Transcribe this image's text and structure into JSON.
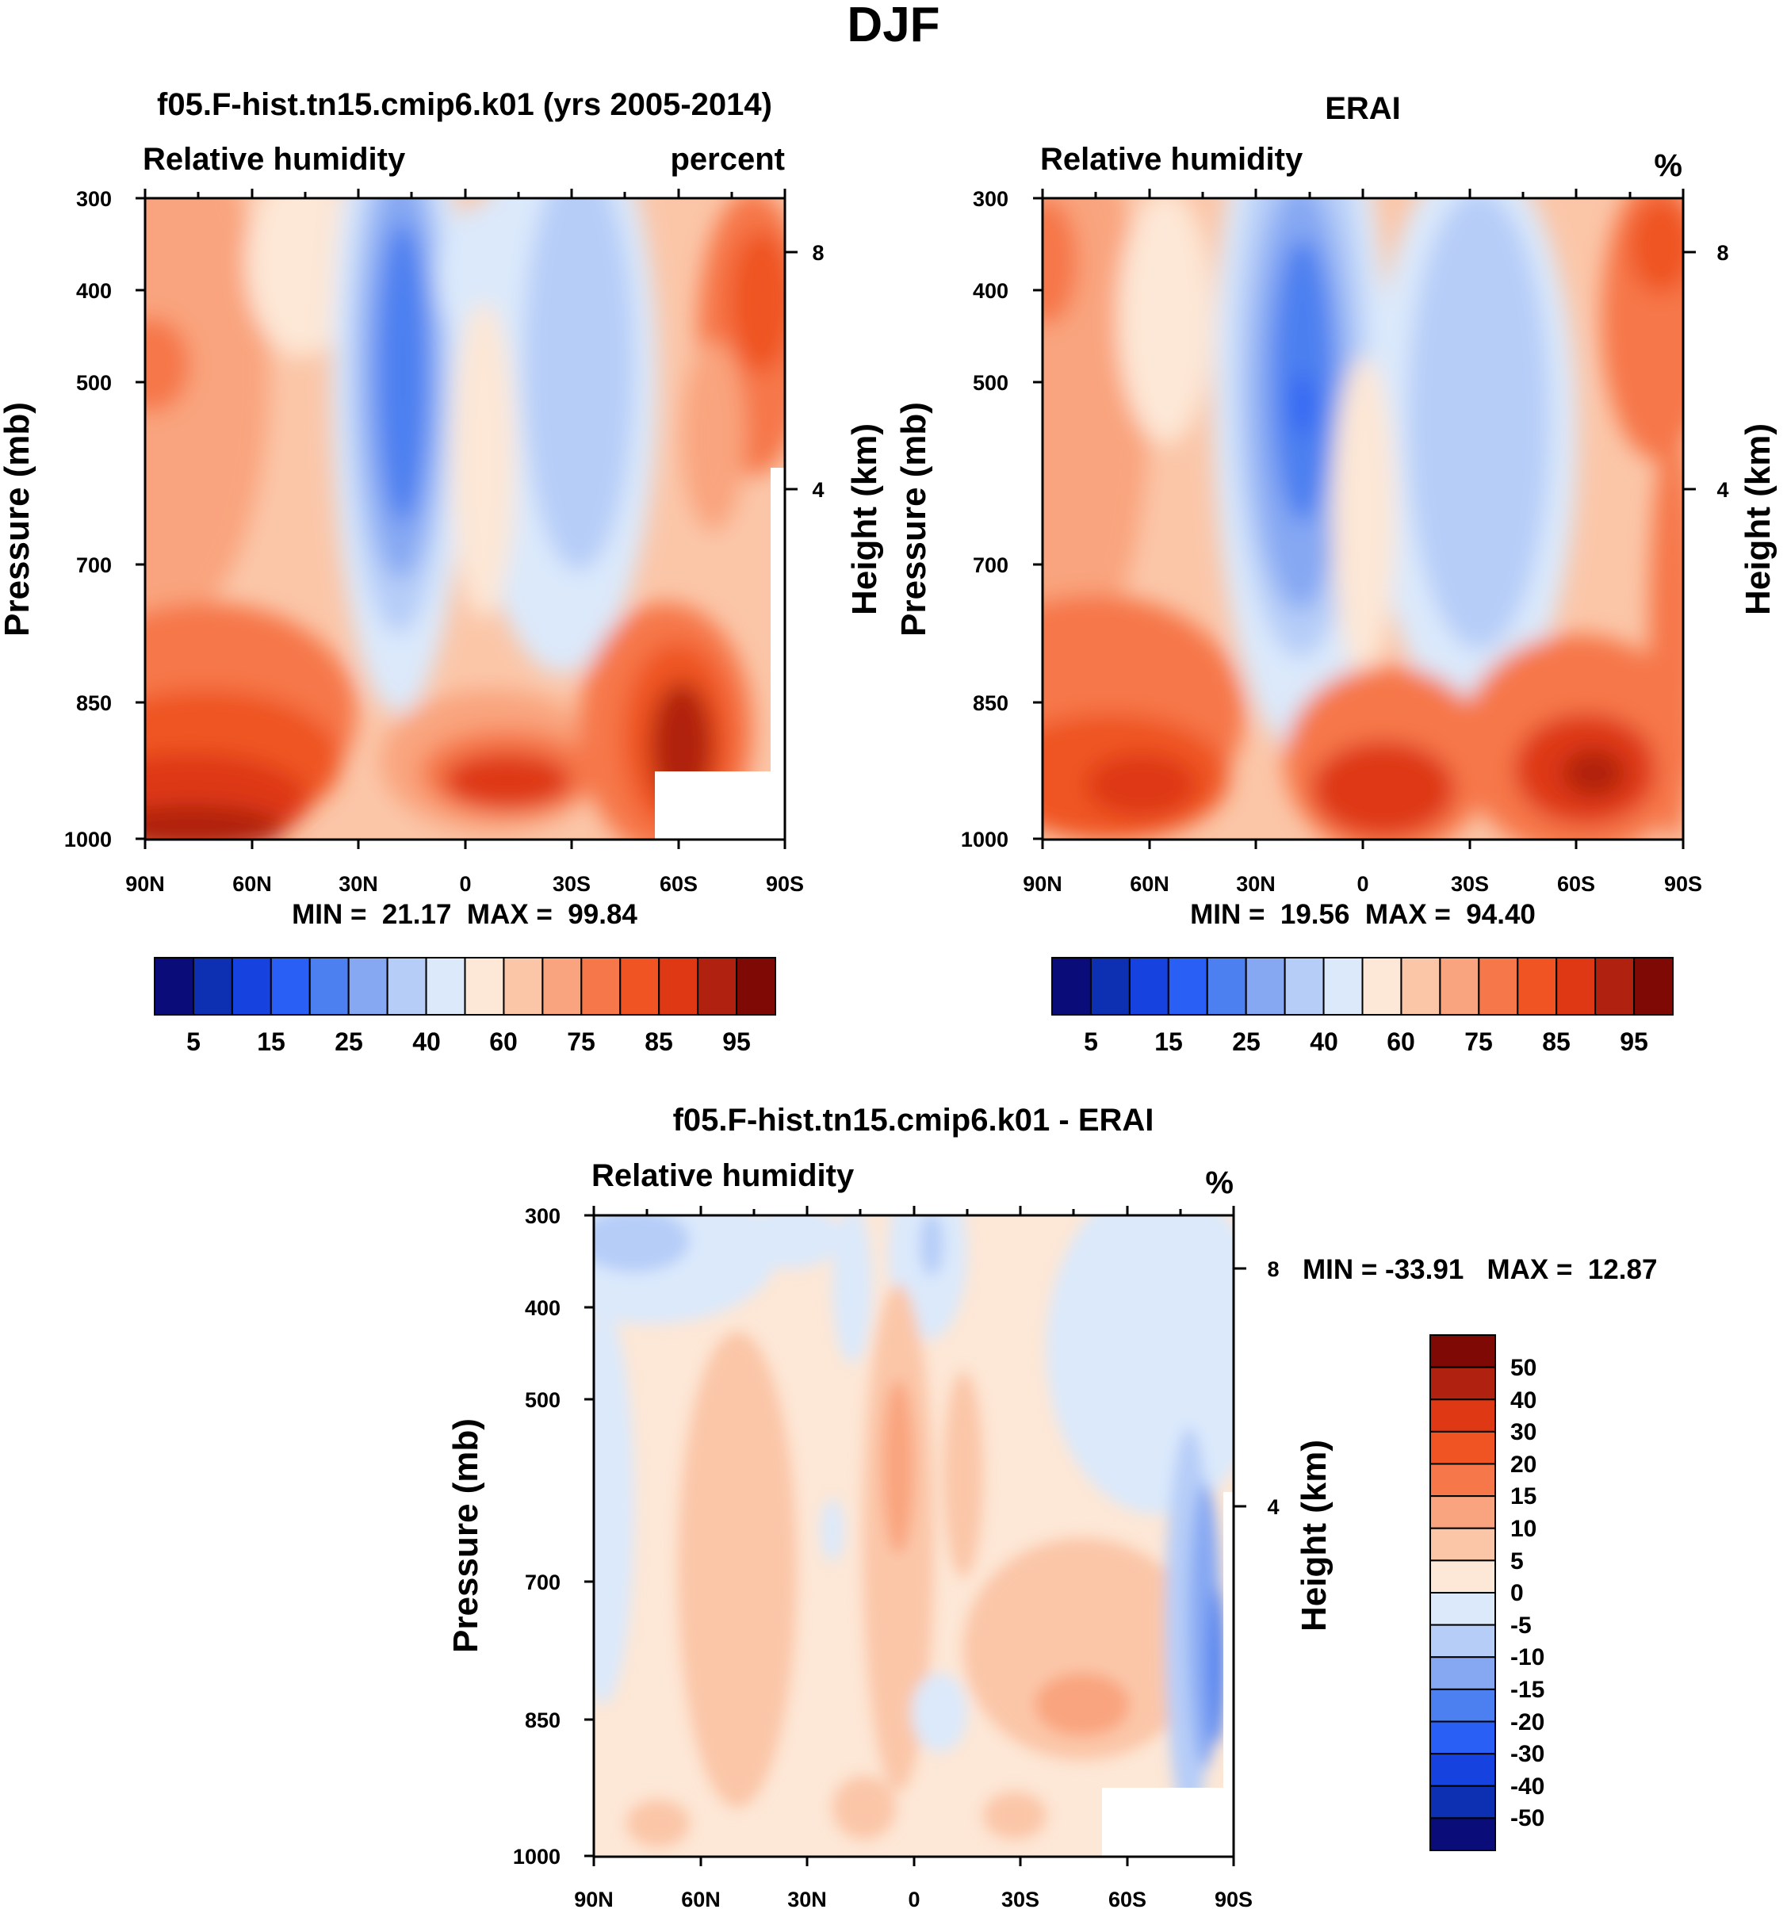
{
  "figure": {
    "title": "DJF"
  },
  "chart_data": [
    {
      "type": "heatmap",
      "title": "f05.F-hist.tn15.cmip6.k01 (yrs 2005-2014)",
      "left_label": "Relative humidity",
      "right_label": "percent",
      "ylabel": "Pressure (mb)",
      "ylabel_right": "Height (km)",
      "x_ticks": [
        "90N",
        "60N",
        "30N",
        "0",
        "30S",
        "60S",
        "90S"
      ],
      "y_ticks": [
        "300",
        "400",
        "500",
        "700",
        "850",
        "1000"
      ],
      "y_ticks_right": [
        "8",
        "4"
      ],
      "stats": "MIN =  21.17  MAX =  99.84",
      "colorbar_labels": [
        "5",
        "15",
        "25",
        "40",
        "60",
        "75",
        "85",
        "95"
      ],
      "value_range": [
        21.17,
        99.84
      ],
      "y_scale": "log",
      "ylim": [
        1000,
        300
      ],
      "xlim": [
        "90N",
        "90S"
      ]
    },
    {
      "type": "heatmap",
      "title": "ERAI",
      "left_label": "Relative humidity",
      "right_label": "%",
      "ylabel": "Pressure (mb)",
      "ylabel_right": "Height (km)",
      "x_ticks": [
        "90N",
        "60N",
        "30N",
        "0",
        "30S",
        "60S",
        "90S"
      ],
      "y_ticks": [
        "300",
        "400",
        "500",
        "700",
        "850",
        "1000"
      ],
      "y_ticks_right": [
        "8",
        "4"
      ],
      "stats": "MIN =  19.56  MAX =  94.40",
      "colorbar_labels": [
        "5",
        "15",
        "25",
        "40",
        "60",
        "75",
        "85",
        "95"
      ],
      "value_range": [
        19.56,
        94.4
      ],
      "y_scale": "log",
      "ylim": [
        1000,
        300
      ],
      "xlim": [
        "90N",
        "90S"
      ]
    },
    {
      "type": "heatmap",
      "title": "f05.F-hist.tn15.cmip6.k01 - ERAI",
      "left_label": "Relative humidity",
      "right_label": "%",
      "ylabel": "Pressure (mb)",
      "ylabel_right": "Height (km)",
      "x_ticks": [
        "90N",
        "60N",
        "30N",
        "0",
        "30S",
        "60S",
        "90S"
      ],
      "y_ticks": [
        "300",
        "400",
        "500",
        "700",
        "850",
        "1000"
      ],
      "y_ticks_right": [
        "8",
        "4"
      ],
      "stats": "MIN = -33.91   MAX =  12.87",
      "colorbar_labels": [
        "50",
        "40",
        "30",
        "20",
        "15",
        "10",
        "5",
        "0",
        "-5",
        "-10",
        "-15",
        "-20",
        "-30",
        "-40",
        "-50"
      ],
      "value_range": [
        -33.91,
        12.87
      ],
      "y_scale": "log",
      "ylim": [
        1000,
        300
      ],
      "xlim": [
        "90N",
        "90S"
      ]
    }
  ],
  "palettes": {
    "absolute": [
      "#0a0c7a",
      "#0d2fb2",
      "#1643e0",
      "#2a5ff5",
      "#4c7ff0",
      "#86a8f3",
      "#b6cdf8",
      "#dbe9fb",
      "#fde7d6",
      "#fbc6a8",
      "#f9a47e",
      "#f6774a",
      "#ef5422",
      "#de3814",
      "#b0220f",
      "#7f0a05"
    ],
    "difference": [
      "#7f0a05",
      "#b0220f",
      "#de3814",
      "#ef5422",
      "#f6774a",
      "#f9a47e",
      "#fbc6a8",
      "#fde7d6",
      "#dbe9fb",
      "#b6cdf8",
      "#86a8f3",
      "#4c7ff0",
      "#2a5ff5",
      "#1643e0",
      "#0d2fb2",
      "#0a0c7a"
    ]
  }
}
